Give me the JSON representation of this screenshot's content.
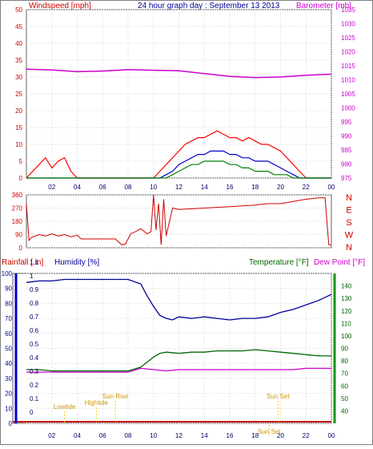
{
  "header": {
    "title": "24 hour graph day : September 13 2013",
    "windspeed_label": "Windspeed [mph]",
    "barometer_label": "Barometer [mb]"
  },
  "colors": {
    "wind_gust": "#ff0000",
    "wind_avg": "#0000cc",
    "wind_min": "#008000",
    "barometer": "#cc00cc",
    "direction": "#cc0000",
    "rainfall": "#cc0000",
    "humidity": "#000099",
    "temperature": "#006600",
    "dewpoint": "#cc00cc",
    "sun_events": "#ffcc00"
  },
  "chart_data": [
    {
      "type": "line",
      "id": "wind",
      "x_ticks": [
        "02",
        "04",
        "06",
        "08",
        "10",
        "12",
        "14",
        "16",
        "18",
        "20",
        "22",
        "00"
      ],
      "y_left": {
        "label": "Windspeed [mph]",
        "ylim": [
          0,
          50
        ],
        "ticks": [
          0,
          5,
          10,
          15,
          20,
          25,
          30,
          35,
          40,
          45,
          50
        ]
      },
      "y_right": {
        "label": "Barometer [mb]",
        "ylim": [
          975,
          1035
        ],
        "ticks": [
          975,
          980,
          985,
          990,
          995,
          1000,
          1005,
          1010,
          1015,
          1020,
          1025,
          1030,
          1035
        ]
      },
      "series": [
        {
          "axis": "left",
          "x": [
            0,
            1,
            1.5,
            2,
            2.5,
            3,
            3.5,
            4,
            5,
            6,
            7,
            8,
            9,
            10,
            10.5,
            11,
            11.5,
            12,
            12.5,
            13,
            13.5,
            14,
            14.5,
            15,
            15.5,
            16,
            16.5,
            17,
            17.5,
            18,
            18.5,
            19,
            19.5,
            20,
            20.5,
            21,
            21.5,
            22,
            23,
            24
          ],
          "values": [
            0,
            4,
            6,
            3,
            5,
            6,
            2,
            0,
            0,
            0,
            0,
            0,
            0,
            0,
            2,
            4,
            6,
            8,
            10,
            11,
            12,
            12,
            13,
            14,
            13,
            12,
            12,
            11,
            12,
            11,
            10,
            10,
            9,
            8,
            6,
            4,
            2,
            0,
            0,
            0
          ]
        },
        {
          "axis": "left",
          "x": [
            0,
            10,
            10.5,
            11,
            11.5,
            12,
            12.5,
            13,
            13.5,
            14,
            14.5,
            15,
            15.5,
            16,
            16.5,
            17,
            17.5,
            18,
            18.5,
            19,
            19.5,
            20,
            20.5,
            21,
            21.5,
            22,
            24
          ],
          "values": [
            0,
            0,
            0,
            1,
            2,
            4,
            5,
            6,
            7,
            7,
            8,
            8,
            8,
            7,
            7,
            6,
            6,
            5,
            5,
            5,
            4,
            3,
            2,
            1,
            0,
            0,
            0
          ]
        },
        {
          "axis": "left",
          "x": [
            0,
            10,
            11,
            11.5,
            12,
            12.5,
            13,
            13.5,
            14,
            14.5,
            15,
            15.5,
            16,
            16.5,
            17,
            17.5,
            18,
            18.5,
            19,
            19.5,
            20,
            20.5,
            21,
            24
          ],
          "values": [
            0,
            0,
            0,
            1,
            2,
            3,
            4,
            4,
            5,
            5,
            5,
            5,
            4,
            4,
            3,
            3,
            2,
            2,
            2,
            1,
            1,
            1,
            0,
            0
          ]
        },
        {
          "axis": "right",
          "x": [
            0,
            2,
            4,
            6,
            8,
            10,
            12,
            14,
            16,
            18,
            20,
            22,
            24
          ],
          "values": [
            1013.8,
            1013.5,
            1012.9,
            1013.1,
            1013.6,
            1013.4,
            1013.2,
            1012.2,
            1011.2,
            1010.8,
            1011.0,
            1011.6,
            1012.0
          ]
        }
      ]
    },
    {
      "type": "line",
      "id": "direction",
      "y_left": {
        "ylim": [
          0,
          360
        ],
        "ticks": [
          0,
          90,
          180,
          270,
          360
        ]
      },
      "y_right": {
        "ticks": [
          "N",
          "W",
          "S",
          "E",
          "N"
        ]
      },
      "series": [
        {
          "axis": "left",
          "x": [
            0,
            0.2,
            0.4,
            1,
            1.5,
            2,
            2.5,
            3,
            3.5,
            4,
            4.3,
            5,
            6,
            7,
            7.5,
            7.8,
            8.2,
            8.6,
            9,
            9.5,
            9.8,
            10,
            10.2,
            10.4,
            10.6,
            10.8,
            11,
            11.5,
            12,
            13,
            14,
            15,
            16,
            17,
            18,
            19,
            20,
            21,
            22,
            22.5,
            23,
            23.5,
            23.8,
            24
          ],
          "values": [
            300,
            50,
            70,
            90,
            80,
            95,
            80,
            90,
            75,
            85,
            60,
            60,
            60,
            60,
            20,
            25,
            95,
            110,
            130,
            95,
            110,
            360,
            120,
            300,
            20,
            330,
            80,
            270,
            260,
            265,
            270,
            275,
            280,
            285,
            290,
            300,
            300,
            315,
            330,
            335,
            340,
            340,
            20,
            20
          ]
        }
      ]
    },
    {
      "type": "line",
      "id": "climate",
      "y_left": {
        "label": "Rainfall [.in]",
        "ylim": [
          0,
          1.2
        ],
        "ticks": [
          "0",
          "0.1",
          "0.2",
          "0.3",
          "0.4",
          "0.5",
          "0.6",
          "0.7",
          "0.8",
          "0.9",
          "1",
          "1.1"
        ]
      },
      "y_left2": {
        "label": "Humidity [%]",
        "ylim": [
          0,
          100
        ],
        "ticks": [
          0,
          10,
          20,
          30,
          40,
          50,
          60,
          70,
          80,
          90,
          100
        ]
      },
      "y_right": {
        "label": "Temperature [°F]",
        "ylim": [
          30,
          150
        ],
        "ticks": [
          40,
          50,
          60,
          70,
          80,
          90,
          100,
          110,
          120,
          130,
          140
        ]
      },
      "dewpoint_label": "Dew Point [°F]",
      "series": [
        {
          "axis": "left2",
          "x": [
            0,
            1,
            2,
            3,
            4,
            5,
            6,
            7,
            8,
            9,
            9.5,
            10,
            10.5,
            11,
            11.5,
            12,
            13,
            14,
            15,
            16,
            17,
            18,
            19,
            20,
            21,
            22,
            23,
            24
          ],
          "values": [
            94,
            95,
            95,
            96,
            96,
            96,
            96,
            96,
            96,
            93,
            85,
            78,
            72,
            70,
            69,
            71,
            70,
            71,
            70,
            69,
            70,
            70,
            71,
            74,
            76,
            79,
            82,
            86
          ]
        },
        {
          "axis": "right",
          "x": [
            0,
            1,
            2,
            3,
            4,
            5,
            6,
            7,
            8,
            9,
            10,
            10.5,
            11,
            12,
            13,
            14,
            15,
            16,
            17,
            18,
            19,
            20,
            21,
            22,
            23,
            24
          ],
          "values": [
            73,
            73,
            72,
            72,
            72,
            72,
            72,
            72,
            72,
            75,
            83,
            86,
            87,
            86,
            87,
            87,
            88,
            88,
            88,
            89,
            88,
            87,
            86,
            85,
            84,
            84
          ]
        },
        {
          "axis": "right",
          "x": [
            0,
            1,
            2,
            3,
            4,
            5,
            6,
            7,
            8,
            9,
            10,
            11,
            12,
            13,
            14,
            15,
            16,
            17,
            18,
            19,
            20,
            21,
            22,
            23,
            24
          ],
          "values": [
            71,
            71,
            71,
            71,
            71,
            71,
            71,
            71,
            71,
            74,
            73,
            72,
            73,
            73,
            73,
            73,
            73,
            73,
            73,
            73,
            73,
            73,
            74,
            74,
            74
          ]
        },
        {
          "axis": "left",
          "x": [
            0,
            24
          ],
          "values": [
            0,
            0
          ]
        }
      ],
      "annotations": [
        {
          "text": "Lowtide",
          "x": 3.0
        },
        {
          "text": "Sun Rise",
          "x": 7.0
        },
        {
          "text": "Hightide",
          "x": 5.5
        },
        {
          "text": "Sun Set",
          "x": 19.8
        },
        {
          "text": "Sun Set",
          "x": 19.1
        }
      ],
      "x_ticks": [
        "02",
        "04",
        "06",
        "08",
        "10",
        "12",
        "14",
        "16",
        "18",
        "20",
        "22",
        "00"
      ]
    }
  ]
}
